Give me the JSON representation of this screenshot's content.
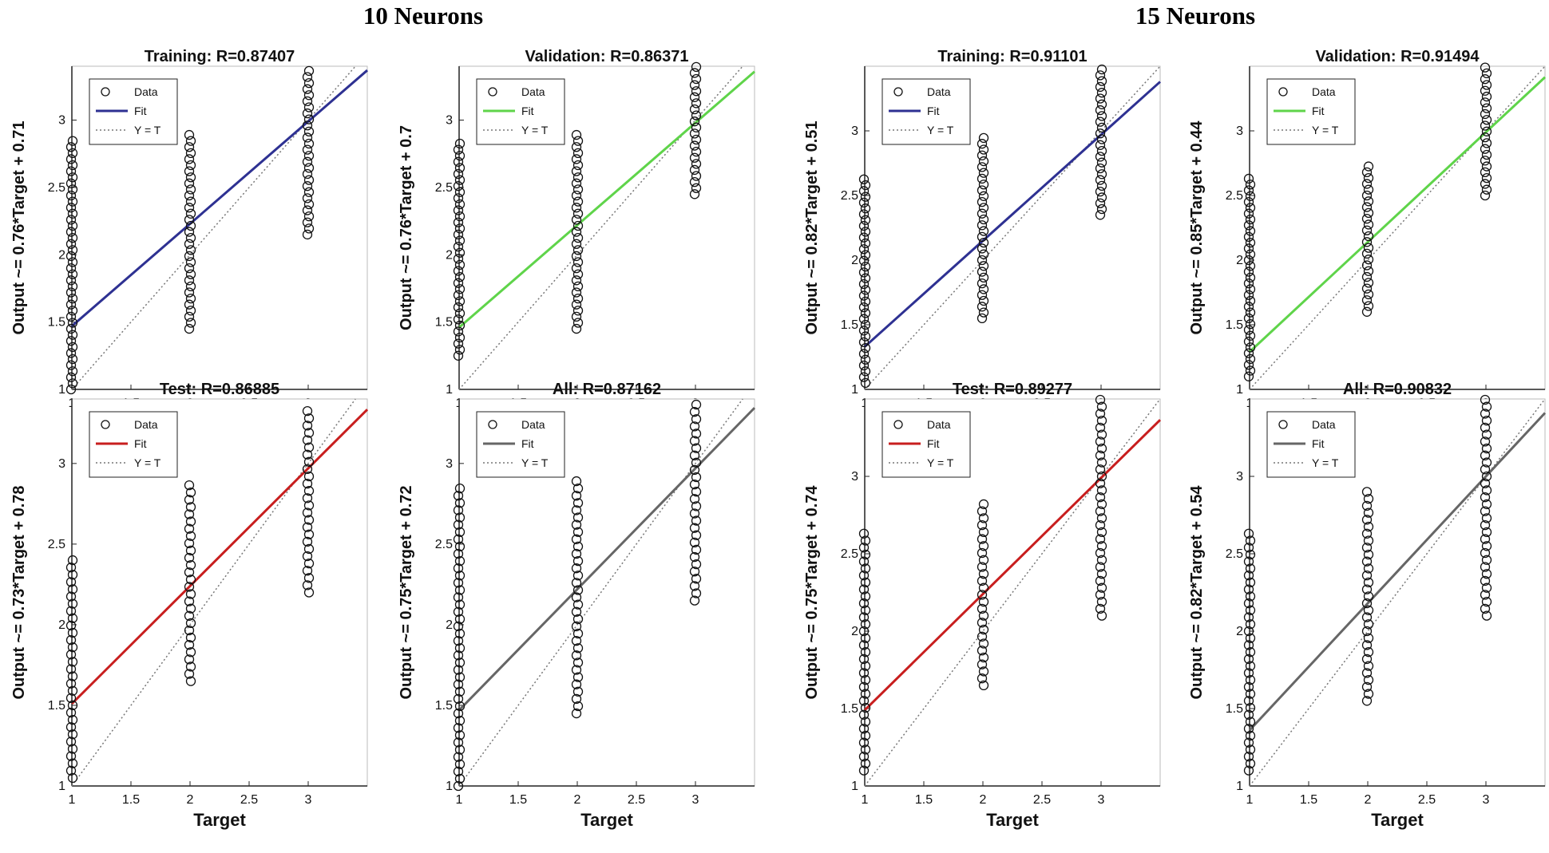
{
  "groups": [
    {
      "title": "10 Neurons"
    },
    {
      "title": "15 Neurons"
    }
  ],
  "legend": {
    "data": "Data",
    "fit": "Fit",
    "yt": "Y = T"
  },
  "chart_data": [
    {
      "type": "scatter",
      "group": "10 Neurons",
      "title": "Training: R=0.87407",
      "xlabel": "Target",
      "ylabel": "Output ~= 0.76*Target + 0.71",
      "xlim": [
        1,
        3.5
      ],
      "ylim": [
        1,
        3.4
      ],
      "xticks": [
        "1",
        "1.5",
        "2",
        "2.5",
        "3"
      ],
      "yticks": [
        "1",
        "1.5",
        "2",
        "2.5",
        "3"
      ],
      "fit": {
        "slope": 0.76,
        "intercept": 0.71,
        "color": "#2e3192"
      },
      "points": [
        {
          "x": 1,
          "ymin": 1.0,
          "ymax": 2.85
        },
        {
          "x": 2,
          "ymin": 1.45,
          "ymax": 2.9
        },
        {
          "x": 3,
          "ymin": 2.15,
          "ymax": 3.4
        }
      ]
    },
    {
      "type": "scatter",
      "group": "10 Neurons",
      "title": "Validation: R=0.86371",
      "xlabel": "Target",
      "ylabel": "Output ~= 0.76*Target + 0.7",
      "xlim": [
        1,
        3.5
      ],
      "ylim": [
        1,
        3.4
      ],
      "xticks": [
        "1",
        "1.5",
        "2",
        "2.5",
        "3"
      ],
      "yticks": [
        "1",
        "1.5",
        "2",
        "2.5",
        "3"
      ],
      "fit": {
        "slope": 0.76,
        "intercept": 0.7,
        "color": "#5fd44a"
      },
      "points": [
        {
          "x": 1,
          "ymin": 1.25,
          "ymax": 2.85
        },
        {
          "x": 2,
          "ymin": 1.45,
          "ymax": 2.9
        },
        {
          "x": 3,
          "ymin": 2.45,
          "ymax": 3.4
        }
      ]
    },
    {
      "type": "scatter",
      "group": "15 Neurons",
      "title": "Training: R=0.91101",
      "xlabel": "Target",
      "ylabel": "Output ~= 0.82*Target + 0.51",
      "xlim": [
        1,
        3.5
      ],
      "ylim": [
        1,
        3.5
      ],
      "xticks": [
        "1",
        "1.5",
        "2",
        "2.5",
        "3"
      ],
      "yticks": [
        "1",
        "1.5",
        "2",
        "2.5",
        "3"
      ],
      "fit": {
        "slope": 0.82,
        "intercept": 0.51,
        "color": "#2e3192"
      },
      "points": [
        {
          "x": 1,
          "ymin": 1.05,
          "ymax": 2.65
        },
        {
          "x": 2,
          "ymin": 1.55,
          "ymax": 2.95
        },
        {
          "x": 3,
          "ymin": 2.35,
          "ymax": 3.5
        }
      ]
    },
    {
      "type": "scatter",
      "group": "15 Neurons",
      "title": "Validation: R=0.91494",
      "xlabel": "Target",
      "ylabel": "Output ~= 0.85*Target + 0.44",
      "xlim": [
        1,
        3.5
      ],
      "ylim": [
        1,
        3.5
      ],
      "xticks": [
        "1",
        "1.5",
        "2",
        "2.5",
        "3"
      ],
      "yticks": [
        "1",
        "1.5",
        "2",
        "2.5",
        "3"
      ],
      "fit": {
        "slope": 0.85,
        "intercept": 0.44,
        "color": "#5fd44a"
      },
      "points": [
        {
          "x": 1,
          "ymin": 1.1,
          "ymax": 2.65
        },
        {
          "x": 2,
          "ymin": 1.6,
          "ymax": 2.75
        },
        {
          "x": 3,
          "ymin": 2.5,
          "ymax": 3.5
        }
      ]
    },
    {
      "type": "scatter",
      "group": "10 Neurons",
      "title": "Test: R=0.86885",
      "xlabel": "Target",
      "ylabel": "Output ~= 0.73*Target + 0.78",
      "xlim": [
        1,
        3.5
      ],
      "ylim": [
        1,
        3.4
      ],
      "xticks": [
        "1",
        "1.5",
        "2",
        "2.5",
        "3"
      ],
      "yticks": [
        "1",
        "1.5",
        "2",
        "2.5",
        "3"
      ],
      "fit": {
        "slope": 0.73,
        "intercept": 0.78,
        "color": "#c81e1e"
      },
      "points": [
        {
          "x": 1,
          "ymin": 1.05,
          "ymax": 2.4
        },
        {
          "x": 2,
          "ymin": 1.65,
          "ymax": 2.9
        },
        {
          "x": 3,
          "ymin": 2.2,
          "ymax": 3.35
        }
      ]
    },
    {
      "type": "scatter",
      "group": "10 Neurons",
      "title": "All: R=0.87162",
      "xlabel": "Target",
      "ylabel": "Output ~= 0.75*Target + 0.72",
      "xlim": [
        1,
        3.5
      ],
      "ylim": [
        1,
        3.4
      ],
      "xticks": [
        "1",
        "1.5",
        "2",
        "2.5",
        "3"
      ],
      "yticks": [
        "1",
        "1.5",
        "2",
        "2.5",
        "3"
      ],
      "fit": {
        "slope": 0.75,
        "intercept": 0.72,
        "color": "#666666"
      },
      "points": [
        {
          "x": 1,
          "ymin": 1.0,
          "ymax": 2.85
        },
        {
          "x": 2,
          "ymin": 1.45,
          "ymax": 2.9
        },
        {
          "x": 3,
          "ymin": 2.15,
          "ymax": 3.4
        }
      ]
    },
    {
      "type": "scatter",
      "group": "15 Neurons",
      "title": "Test: R=0.89277",
      "xlabel": "Target",
      "ylabel": "Output ~= 0.75*Target + 0.74",
      "xlim": [
        1,
        3.5
      ],
      "ylim": [
        1,
        3.5
      ],
      "xticks": [
        "1",
        "1.5",
        "2",
        "2.5",
        "3"
      ],
      "yticks": [
        "1",
        "1.5",
        "2",
        "2.5",
        "3"
      ],
      "fit": {
        "slope": 0.75,
        "intercept": 0.74,
        "color": "#c81e1e"
      },
      "points": [
        {
          "x": 1,
          "ymin": 1.1,
          "ymax": 2.65
        },
        {
          "x": 2,
          "ymin": 1.65,
          "ymax": 2.85
        },
        {
          "x": 3,
          "ymin": 2.1,
          "ymax": 3.5
        }
      ]
    },
    {
      "type": "scatter",
      "group": "15 Neurons",
      "title": "All: R=0.90832",
      "xlabel": "Target",
      "ylabel": "Output ~= 0.82*Target + 0.54",
      "xlim": [
        1,
        3.5
      ],
      "ylim": [
        1,
        3.5
      ],
      "xticks": [
        "1",
        "1.5",
        "2",
        "2.5",
        "3"
      ],
      "yticks": [
        "1",
        "1.5",
        "2",
        "2.5",
        "3"
      ],
      "fit": {
        "slope": 0.82,
        "intercept": 0.54,
        "color": "#666666"
      },
      "points": [
        {
          "x": 1,
          "ymin": 1.1,
          "ymax": 2.65
        },
        {
          "x": 2,
          "ymin": 1.55,
          "ymax": 2.9
        },
        {
          "x": 3,
          "ymin": 2.1,
          "ymax": 3.5
        }
      ]
    }
  ]
}
